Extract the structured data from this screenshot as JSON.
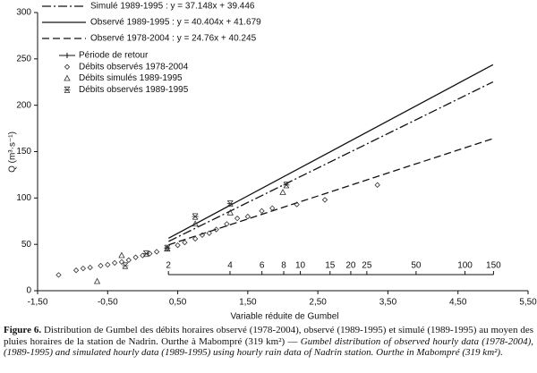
{
  "chart_data": {
    "type": "scatter",
    "x_label": "Variable réduite de Gumbel",
    "y_label": "Q (m³·s⁻¹)",
    "xlim": [
      -1.5,
      5.5
    ],
    "xticks": [
      {
        "value": -1.5,
        "label": "-1,50"
      },
      {
        "value": -0.5,
        "label": "-0,50"
      },
      {
        "value": 0.5,
        "label": "0,50"
      },
      {
        "value": 1.5,
        "label": "1,50"
      },
      {
        "value": 2.5,
        "label": "2,50"
      },
      {
        "value": 3.5,
        "label": "3,50"
      },
      {
        "value": 4.5,
        "label": "4,50"
      },
      {
        "value": 5.5,
        "label": "5,50"
      }
    ],
    "ylim": [
      0,
      300
    ],
    "yticks": [
      0,
      50,
      100,
      150,
      200,
      250,
      300
    ],
    "series": [
      {
        "name": "Simulé 1989-1995 : y = 37.148x + 39.446",
        "style": "dashdot",
        "color": "#111111",
        "x": [
          0.37,
          5
        ],
        "values": [
          53.19,
          225.19
        ]
      },
      {
        "name": "Observé 1989-1995 : y = 40.404x + 41.679",
        "style": "solid",
        "color": "#111111",
        "x": [
          0.37,
          5
        ],
        "values": [
          56.63,
          243.7
        ]
      },
      {
        "name": "Observé 1978-2004 : y = 24.76x + 40.245",
        "style": "dashed",
        "color": "#111111",
        "x": [
          0.37,
          5
        ],
        "values": [
          49.41,
          164.05
        ]
      },
      {
        "name": "Débits observés 1978-2004",
        "marker": "diamond",
        "color": "#333333",
        "x": [
          -1.2,
          -0.95,
          -0.85,
          -0.75,
          -0.6,
          -0.5,
          -0.4,
          -0.3,
          -0.2,
          -0.1,
          0,
          0.1,
          0.2,
          0.35,
          0.5,
          0.6,
          0.75,
          0.85,
          0.95,
          1.05,
          1.2,
          1.35,
          1.5,
          1.7,
          1.85,
          2.2,
          2.6,
          3.35
        ],
        "values": [
          17,
          22,
          24,
          25,
          27,
          28,
          30,
          31,
          33,
          36,
          38,
          40,
          42,
          46,
          49,
          52,
          56,
          60,
          62,
          66,
          72,
          78,
          80,
          86,
          89,
          93,
          98,
          114
        ]
      },
      {
        "name": "Débits simulés 1989-1995",
        "marker": "triangle",
        "color": "#333333",
        "x": [
          -0.65,
          -0.3,
          0.35,
          0.75,
          1.25,
          2.0
        ],
        "values": [
          10,
          38,
          45,
          72,
          84,
          106
        ]
      },
      {
        "name": "Débits observés 1989-1995",
        "marker": "asterisk",
        "color": "#333333",
        "x": [
          -0.25,
          0.05,
          0.35,
          0.75,
          1.25,
          2.05
        ],
        "values": [
          27,
          40,
          46,
          80,
          94,
          114
        ]
      }
    ],
    "return_period": {
      "name": "Période de retour",
      "ticks": [
        {
          "value": 0.367,
          "label": "2"
        },
        {
          "value": 1.246,
          "label": "4"
        },
        {
          "value": 1.702,
          "label": "6"
        },
        {
          "value": 2.013,
          "label": "8"
        },
        {
          "value": 2.25,
          "label": "10"
        },
        {
          "value": 2.674,
          "label": "15"
        },
        {
          "value": 2.97,
          "label": "20"
        },
        {
          "value": 3.199,
          "label": "25"
        },
        {
          "value": 3.902,
          "label": "50"
        },
        {
          "value": 4.6,
          "label": "100"
        },
        {
          "value": 5.007,
          "label": "150"
        }
      ]
    }
  },
  "caption": {
    "label": "Figure 6.",
    "text_fr": "Distribution de Gumbel des débits horaires observé (1978-2004), observé (1989-1995) et simulé (1989-1995) au moyen des pluies horaires de la station de Nadrin. Ourthe à Mabompré (319 km²) —",
    "text_en": "Gumbel distribution of observed hourly data (1978-2004), (1989-1995) and simulated hourly data (1989-1995) using hourly rain data of Nadrin station. Ourthe in Mabompré (319 km²)."
  }
}
